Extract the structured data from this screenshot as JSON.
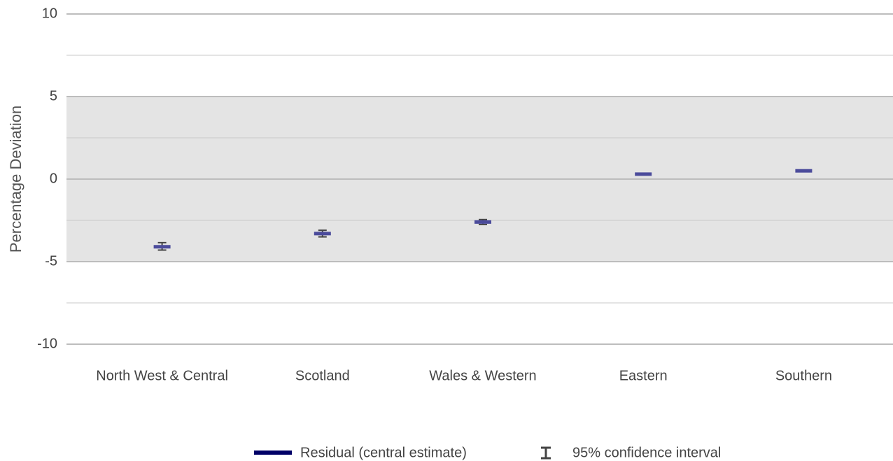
{
  "chart_data": {
    "type": "errorbar",
    "ylabel": "Percentage Deviation",
    "categories": [
      "North West & Central",
      "Scotland",
      "Wales & Western",
      "Eastern",
      "Southern"
    ],
    "series": [
      {
        "name": "Residual (central estimate)",
        "color": "#000066",
        "marker_color": "#4b4b9b",
        "values": [
          -4.1,
          -3.3,
          -2.6,
          0.3,
          0.5
        ]
      }
    ],
    "confidence_interval": {
      "name": "95% confidence interval",
      "color": "#444444",
      "lower": [
        -4.3,
        -3.5,
        -2.75,
        0.25,
        0.45
      ],
      "upper": [
        -3.85,
        -3.1,
        -2.45,
        0.35,
        0.55
      ]
    },
    "ylim": [
      -10,
      10
    ],
    "yticks": [
      -10,
      -5,
      0,
      5,
      10
    ],
    "minor_gridlines": [
      -7.5,
      -2.5,
      2.5,
      7.5
    ],
    "shaded_range": [
      -5,
      5
    ],
    "shade_color": "#e4e4e4",
    "grid": true,
    "legend": "bottom"
  }
}
